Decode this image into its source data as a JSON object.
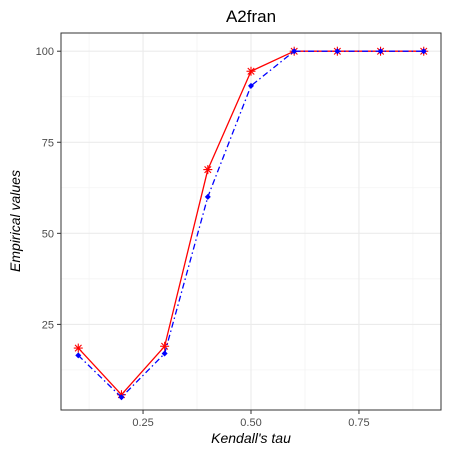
{
  "chart_data": {
    "type": "line",
    "title": "A2fran",
    "xlabel": "Kendall's tau",
    "ylabel": "Empirical values",
    "x": [
      0.1,
      0.2,
      0.3,
      0.4,
      0.5,
      0.6,
      0.7,
      0.8,
      0.9
    ],
    "xlim": [
      0.06,
      0.94
    ],
    "ylim": [
      1.5,
      105
    ],
    "x_ticks": [
      0.25,
      0.5,
      0.75
    ],
    "x_tick_labels": [
      "0.25",
      "0.50",
      "0.75"
    ],
    "y_ticks": [
      25,
      50,
      75,
      100
    ],
    "y_tick_labels": [
      "25",
      "50",
      "75",
      "100"
    ],
    "grid": true,
    "series": [
      {
        "values": [
          18.5,
          5.7,
          19.0,
          67.5,
          94.5,
          100,
          100,
          100,
          100
        ],
        "color": "#ff0000",
        "line_style": "solid",
        "marker": "asterisk"
      },
      {
        "values": [
          16.5,
          5.0,
          17.0,
          60.0,
          90.5,
          100,
          100,
          100,
          100
        ],
        "color": "#0000ff",
        "line_style": "dashdot",
        "marker": "diamond"
      }
    ]
  }
}
